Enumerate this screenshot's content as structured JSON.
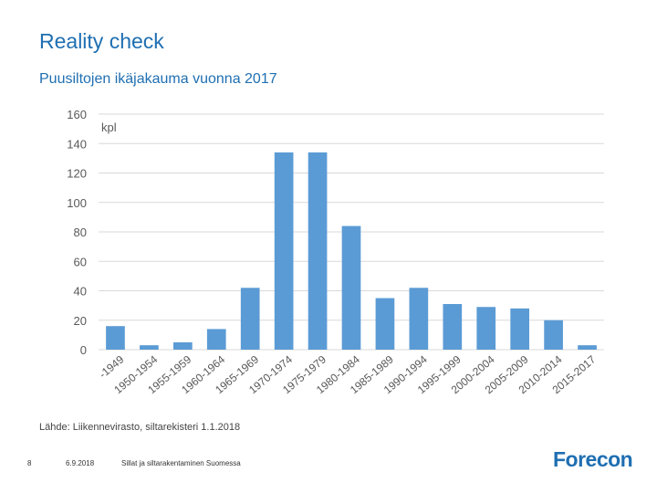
{
  "header": {
    "title": "Reality check",
    "subtitle": "Puusiltojen ikäjakauma vuonna 2017"
  },
  "chart_data": {
    "type": "bar",
    "unit_label": "kpl",
    "categories": [
      "-1949",
      "1950-1954",
      "1955-1959",
      "1960-1964",
      "1965-1969",
      "1970-1974",
      "1975-1979",
      "1980-1984",
      "1985-1989",
      "1990-1994",
      "1995-1999",
      "2000-2004",
      "2005-2009",
      "2010-2014",
      "2015-2017"
    ],
    "values": [
      16,
      3,
      5,
      14,
      42,
      134,
      134,
      84,
      35,
      42,
      31,
      29,
      28,
      20,
      3
    ],
    "ylim": [
      0,
      160
    ],
    "yticks": [
      0,
      20,
      40,
      60,
      80,
      100,
      120,
      140,
      160
    ],
    "grid": true,
    "bar_color": "#5b9bd5"
  },
  "source": "Lähde: Liikennevirasto, siltarekisteri 1.1.2018",
  "footer": {
    "page_number": "8",
    "date": "6.9.2018",
    "presentation_title": "Sillat ja siltarakentaminen Suomessa"
  },
  "logo_text": "Forecon"
}
